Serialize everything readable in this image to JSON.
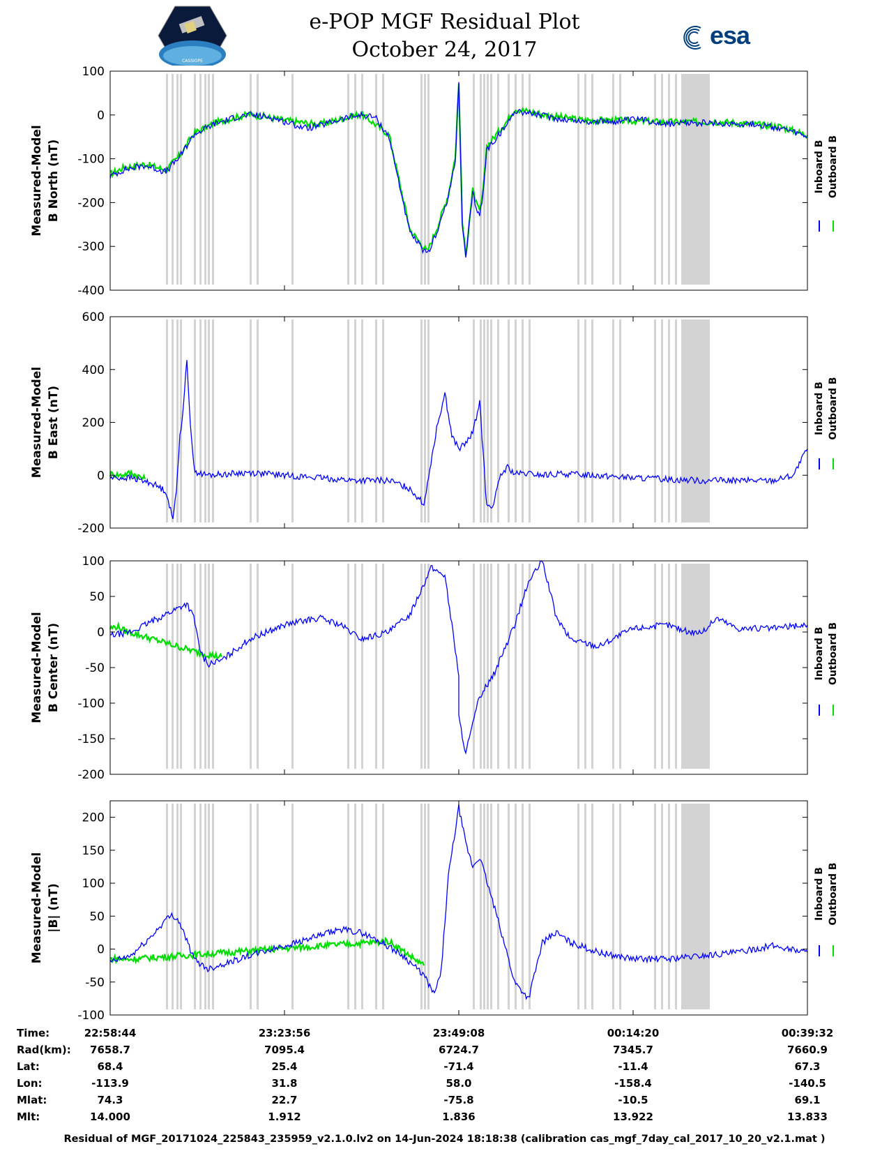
{
  "header": {
    "title_line1": "e-POP MGF Residual Plot",
    "title_line2": "October 24, 2017",
    "logo_left_text": "CASSIOPE",
    "logo_right_text": "esa"
  },
  "colors": {
    "inboard": "#0000ff",
    "outboard": "#00dd00",
    "gap_band": "#d3d3d3"
  },
  "chart_data": [
    {
      "type": "line",
      "ylabel_line1": "Measured-Model",
      "ylabel_line2": "B North (nT)",
      "ylim": [
        -400,
        100
      ],
      "yticks": [
        100,
        0,
        -100,
        -200,
        -300,
        -400
      ],
      "legend": [
        "Inboard B",
        "Outboard B"
      ],
      "legend_placement": "right",
      "series": [
        {
          "name": "Inboard B",
          "color": "#0000ff",
          "x": [
            0,
            0.02,
            0.05,
            0.08,
            0.1,
            0.12,
            0.15,
            0.18,
            0.2,
            0.23,
            0.25,
            0.28,
            0.3,
            0.33,
            0.36,
            0.38,
            0.4,
            0.43,
            0.455,
            0.47,
            0.485,
            0.495,
            0.5,
            0.505,
            0.51,
            0.515,
            0.52,
            0.525,
            0.53,
            0.535,
            0.54,
            0.55,
            0.57,
            0.58,
            0.6,
            0.63,
            0.65,
            0.68,
            0.72,
            0.76,
            0.8,
            0.84,
            0.88,
            0.92,
            0.96,
            1.0
          ],
          "y": [
            -140,
            -125,
            -115,
            -130,
            -95,
            -45,
            -20,
            -5,
            0,
            -5,
            -15,
            -30,
            -25,
            -10,
            0,
            -5,
            -50,
            -270,
            -320,
            -260,
            -190,
            -100,
            70,
            -250,
            -330,
            -250,
            -180,
            -210,
            -230,
            -180,
            -80,
            -60,
            -20,
            10,
            5,
            -5,
            -10,
            -15,
            -15,
            -10,
            -20,
            -18,
            -20,
            -20,
            -30,
            -50
          ]
        },
        {
          "name": "Outboard B",
          "color": "#00dd00",
          "x": [
            0,
            0.02,
            0.05,
            0.08,
            0.1,
            0.12,
            0.15,
            0.2,
            0.25,
            0.3,
            0.36,
            0.4,
            0.43,
            0.455,
            0.47,
            0.485,
            0.495,
            0.5,
            0.505,
            0.51,
            0.515,
            0.52,
            0.525,
            0.53,
            0.535,
            0.54,
            0.55,
            0.57,
            0.58,
            0.6,
            0.63,
            0.68,
            0.72,
            0.8,
            0.88,
            0.96,
            1.0
          ],
          "y": [
            -135,
            -120,
            -112,
            -125,
            -92,
            -42,
            -18,
            2,
            -12,
            -22,
            3,
            -45,
            -262,
            -312,
            -252,
            -182,
            -94,
            72,
            -244,
            -322,
            -242,
            -172,
            -202,
            -222,
            -172,
            -72,
            -52,
            -12,
            14,
            8,
            -2,
            -12,
            -12,
            -16,
            -16,
            -26,
            -46
          ]
        }
      ]
    },
    {
      "type": "line",
      "ylabel_line1": "Measured-Model",
      "ylabel_line2": "B East (nT)",
      "ylim": [
        -200,
        600
      ],
      "yticks": [
        600,
        400,
        200,
        0,
        -200
      ],
      "legend": [
        "Inboard B",
        "Outboard B"
      ],
      "legend_placement": "right",
      "series": [
        {
          "name": "Inboard B",
          "color": "#0000ff",
          "x": [
            0,
            0.03,
            0.06,
            0.08,
            0.09,
            0.095,
            0.1,
            0.105,
            0.11,
            0.115,
            0.12,
            0.125,
            0.13,
            0.14,
            0.2,
            0.25,
            0.3,
            0.35,
            0.4,
            0.43,
            0.45,
            0.46,
            0.47,
            0.48,
            0.49,
            0.5,
            0.51,
            0.52,
            0.53,
            0.54,
            0.55,
            0.56,
            0.57,
            0.58,
            0.6,
            0.62,
            0.65,
            0.7,
            0.75,
            0.8,
            0.85,
            0.9,
            0.95,
            0.98,
            1.0
          ],
          "y": [
            -10,
            -10,
            -30,
            -60,
            -170,
            -50,
            150,
            250,
            440,
            200,
            30,
            10,
            5,
            0,
            10,
            0,
            -10,
            -20,
            -20,
            -50,
            -110,
            50,
            200,
            310,
            150,
            100,
            120,
            160,
            280,
            -120,
            -110,
            0,
            30,
            5,
            5,
            0,
            5,
            0,
            -10,
            -15,
            -20,
            -20,
            -20,
            0,
            100
          ]
        },
        {
          "name": "Outboard B",
          "color": "#00dd00",
          "x": [
            0,
            0.015,
            0.03,
            0.05
          ],
          "y": [
            5,
            0,
            10,
            -15
          ]
        }
      ]
    },
    {
      "type": "line",
      "ylabel_line1": "Measured-Model",
      "ylabel_line2": "B Center (nT)",
      "ylim": [
        -200,
        100
      ],
      "yticks": [
        100,
        50,
        0,
        -50,
        -100,
        -150,
        -200
      ],
      "legend": [
        "Inboard B",
        "Outboard B"
      ],
      "legend_placement": "right",
      "series": [
        {
          "name": "Inboard B",
          "color": "#0000ff",
          "x": [
            0,
            0.03,
            0.06,
            0.09,
            0.11,
            0.12,
            0.13,
            0.14,
            0.16,
            0.2,
            0.25,
            0.3,
            0.33,
            0.36,
            0.4,
            0.43,
            0.46,
            0.48,
            0.5,
            0.5,
            0.5,
            0.51,
            0.53,
            0.55,
            0.58,
            0.6,
            0.62,
            0.64,
            0.66,
            0.7,
            0.75,
            0.8,
            0.83,
            0.85,
            0.87,
            0.9,
            0.95,
            1.0
          ],
          "y": [
            -5,
            0,
            15,
            30,
            40,
            20,
            -30,
            -45,
            -40,
            -10,
            10,
            20,
            10,
            -10,
            0,
            25,
            90,
            80,
            -60,
            -100,
            -120,
            -170,
            -90,
            -60,
            10,
            70,
            100,
            20,
            -10,
            -20,
            5,
            10,
            0,
            0,
            20,
            5,
            5,
            10
          ]
        },
        {
          "name": "Outboard B",
          "color": "#00dd00",
          "x": [
            0,
            0.01,
            0.02,
            0.13,
            0.16
          ],
          "y": [
            5,
            8,
            2,
            -30,
            -35
          ]
        }
      ]
    },
    {
      "type": "line",
      "ylabel_line1": "Measured-Model",
      "ylabel_line2": "|B| (nT)",
      "ylim": [
        -100,
        225
      ],
      "yticks": [
        200,
        150,
        100,
        50,
        0,
        -50,
        -100
      ],
      "legend": [
        "Inboard B",
        "Outboard B"
      ],
      "legend_placement": "right",
      "series": [
        {
          "name": "Inboard B",
          "color": "#0000ff",
          "x": [
            0,
            0.03,
            0.06,
            0.08,
            0.09,
            0.1,
            0.12,
            0.14,
            0.17,
            0.2,
            0.25,
            0.3,
            0.33,
            0.36,
            0.39,
            0.42,
            0.45,
            0.465,
            0.475,
            0.485,
            0.5,
            0.51,
            0.52,
            0.53,
            0.56,
            0.58,
            0.6,
            0.62,
            0.64,
            0.66,
            0.7,
            0.75,
            0.8,
            0.85,
            0.9,
            0.95,
            1.0
          ],
          "y": [
            -20,
            -10,
            20,
            45,
            52,
            40,
            -15,
            -30,
            -20,
            -10,
            5,
            20,
            30,
            25,
            10,
            -10,
            -40,
            -70,
            -30,
            110,
            215,
            160,
            125,
            140,
            30,
            -50,
            -75,
            10,
            25,
            10,
            -5,
            -15,
            -15,
            -10,
            -5,
            5,
            -5
          ]
        },
        {
          "name": "Outboard B",
          "color": "#00dd00",
          "x": [
            0,
            0.01,
            0.02,
            0.4,
            0.45
          ],
          "y": [
            -15,
            -14,
            -16,
            12,
            -25
          ]
        }
      ]
    }
  ],
  "gap_bands": [
    0.08,
    0.088,
    0.095,
    0.1,
    0.12,
    0.128,
    0.135,
    0.14,
    0.146,
    0.2,
    0.21,
    0.26,
    0.34,
    0.35,
    0.36,
    0.38,
    0.39,
    0.445,
    0.45,
    0.455,
    0.52,
    0.53,
    0.535,
    0.54,
    0.545,
    0.555,
    0.57,
    0.58,
    0.59,
    0.6,
    0.68,
    0.67,
    0.69,
    0.72,
    0.73,
    0.78,
    0.79,
    0.8,
    0.81,
    0.83
  ],
  "gap_block": [
    0.819,
    0.86
  ],
  "footer": {
    "row_labels": [
      "Time:",
      "Rad(km):",
      "Lat:",
      "Lon:",
      "Mlat:",
      "Mlt:"
    ],
    "columns": [
      [
        "22:58:44",
        "7658.7",
        "68.4",
        "-113.9",
        "74.3",
        "14.000"
      ],
      [
        "23:23:56",
        "7095.4",
        "25.4",
        "31.8",
        "22.7",
        "1.912"
      ],
      [
        "23:49:08",
        "6724.7",
        "-71.4",
        "58.0",
        "-75.8",
        "1.836"
      ],
      [
        "00:14:20",
        "7345.7",
        "-11.4",
        "-158.4",
        "-10.5",
        "13.922"
      ],
      [
        "00:39:32",
        "7660.9",
        "67.3",
        "-140.5",
        "69.1",
        "13.833"
      ]
    ],
    "note": "Residual of MGF_20171024_225843_235959_v2.1.0.lv2 on 14-Jun-2024 18:18:38 (calibration cas_mgf_7day_cal_2017_10_20_v2.1.mat )"
  }
}
